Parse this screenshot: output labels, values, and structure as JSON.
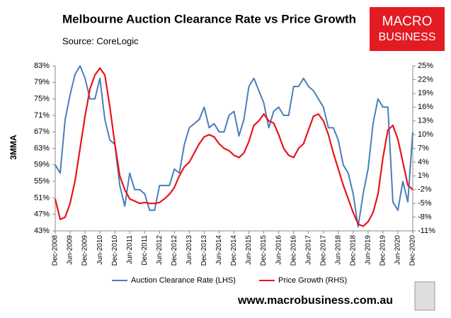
{
  "chart_data": {
    "type": "line",
    "title": "Melbourne Auction Clearance Rate vs Price Growth",
    "subtitle": "Source: CoreLogic",
    "ylabel": "3MMA",
    "branding": [
      "MACRO",
      "BUSINESS"
    ],
    "footer": "www.macrobusiness.com.au",
    "categories": [
      "Dec-2008",
      null,
      null,
      "Jun-2009",
      null,
      null,
      "Dec-2009",
      null,
      null,
      "Jun-2010",
      null,
      null,
      "Dec-2010",
      null,
      null,
      "Jun-2011",
      null,
      null,
      "Dec-2011",
      null,
      null,
      "Jun-2012",
      null,
      null,
      "Dec-2012",
      null,
      null,
      "Jun-2013",
      null,
      null,
      "Dec-2013",
      null,
      null,
      "Jun-2014",
      null,
      null,
      "Dec-2014",
      null,
      null,
      "Jun-2015",
      null,
      null,
      "Dec-2015",
      null,
      null,
      "Jun-2016",
      null,
      null,
      "Dec-2016",
      null,
      null,
      "Jun-2017",
      null,
      null,
      "Dec-2017",
      null,
      null,
      "Jun-2018",
      null,
      null,
      "Dec-2018",
      null,
      null,
      "Jun-2019",
      null,
      null,
      "Dec-2019",
      null,
      null,
      "Jun-2020",
      null,
      null,
      "Dec-2020"
    ],
    "series": [
      {
        "name": "Auction Clearance Rate (LHS)",
        "color": "#4a7ebb",
        "axis": "y",
        "values": [
          59,
          57,
          70,
          76,
          81,
          83,
          80,
          75,
          75,
          80,
          70,
          65,
          64,
          54,
          49,
          57,
          53,
          53,
          52,
          48,
          48,
          54,
          54,
          54,
          58,
          57,
          64,
          68,
          69,
          70,
          73,
          68,
          69,
          67,
          67,
          71,
          72,
          66,
          70,
          78,
          80,
          77,
          74,
          68,
          72,
          73,
          71,
          71,
          78,
          78,
          80,
          78,
          77,
          75,
          73,
          68,
          68,
          65,
          59,
          57,
          52,
          44,
          52,
          58,
          69,
          75,
          73,
          73,
          50,
          48,
          55,
          50,
          67
        ]
      },
      {
        "name": "Price Growth (RHS)",
        "color": "#e8141b",
        "axis": "y2",
        "values": [
          -4,
          -8.5,
          -8,
          -5,
          0,
          7,
          14,
          20,
          23,
          24.5,
          23,
          16,
          8,
          1,
          -2,
          -4,
          -4.5,
          -5,
          -4.8,
          -5,
          -5,
          -4.8,
          -4,
          -3,
          -1.5,
          1,
          3,
          4,
          6,
          8,
          9.5,
          10,
          9.5,
          8,
          7,
          6.5,
          5.5,
          5,
          6,
          8.5,
          12,
          13,
          14.5,
          13,
          12.5,
          10,
          7,
          5.5,
          5,
          7,
          8,
          11,
          14,
          14.5,
          13,
          10,
          6,
          2.5,
          -1,
          -4,
          -7,
          -9.5,
          -10,
          -9,
          -7,
          -3,
          5,
          11,
          12,
          9,
          4,
          -1,
          -2
        ]
      }
    ],
    "ylim": [
      43,
      83
    ],
    "yticks": [
      {
        "value": 43,
        "label": "43%"
      },
      {
        "value": 47,
        "label": "47%"
      },
      {
        "value": 51,
        "label": "51%"
      },
      {
        "value": 55,
        "label": "55%"
      },
      {
        "value": 59,
        "label": "59%"
      },
      {
        "value": 63,
        "label": "63%"
      },
      {
        "value": 67,
        "label": "67%"
      },
      {
        "value": 71,
        "label": "71%"
      },
      {
        "value": 75,
        "label": "75%"
      },
      {
        "value": 79,
        "label": "79%"
      },
      {
        "value": 83,
        "label": "83%"
      }
    ],
    "y2lim": [
      -11,
      25
    ],
    "y2ticks": [
      {
        "value": -11,
        "label": "-11%"
      },
      {
        "value": -8,
        "label": "-8%"
      },
      {
        "value": -5,
        "label": "-5%"
      },
      {
        "value": -2,
        "label": "-2%"
      },
      {
        "value": 1,
        "label": "1%"
      },
      {
        "value": 4,
        "label": "4%"
      },
      {
        "value": 7,
        "label": "7%"
      },
      {
        "value": 10,
        "label": "10%"
      },
      {
        "value": 13,
        "label": "13%"
      },
      {
        "value": 16,
        "label": "16%"
      },
      {
        "value": 19,
        "label": "19%"
      },
      {
        "value": 22,
        "label": "22%"
      },
      {
        "value": 25,
        "label": "25%"
      }
    ],
    "grid": false,
    "legend": "bottom"
  }
}
